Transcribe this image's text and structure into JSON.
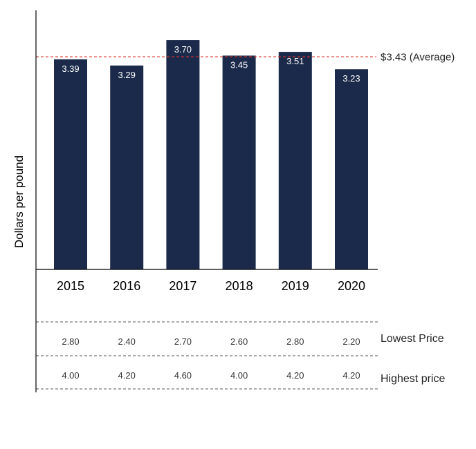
{
  "chart_data": {
    "type": "bar",
    "categories": [
      "2015",
      "2016",
      "2017",
      "2018",
      "2019",
      "2020"
    ],
    "values": [
      3.39,
      3.29,
      3.7,
      3.45,
      3.51,
      3.23
    ],
    "value_labels": [
      "3.39",
      "3.29",
      "3.70",
      "3.45",
      "3.51",
      "3.23"
    ],
    "ylabel": "Dollars per pound",
    "ylim": [
      0,
      4.18
    ],
    "average": {
      "value": 3.43,
      "label": "$3.43 (Average)"
    },
    "table_rows": [
      {
        "label": "Lowest Price",
        "values": [
          "2.80",
          "2.40",
          "2.70",
          "2.60",
          "2.80",
          "2.20"
        ]
      },
      {
        "label": "Highest price",
        "values": [
          "4.00",
          "4.20",
          "4.60",
          "4.00",
          "4.20",
          "4.20"
        ]
      }
    ],
    "colors": {
      "bar": "#1b2a4a",
      "average_line": "#d9342b",
      "axis": "#000000"
    }
  }
}
